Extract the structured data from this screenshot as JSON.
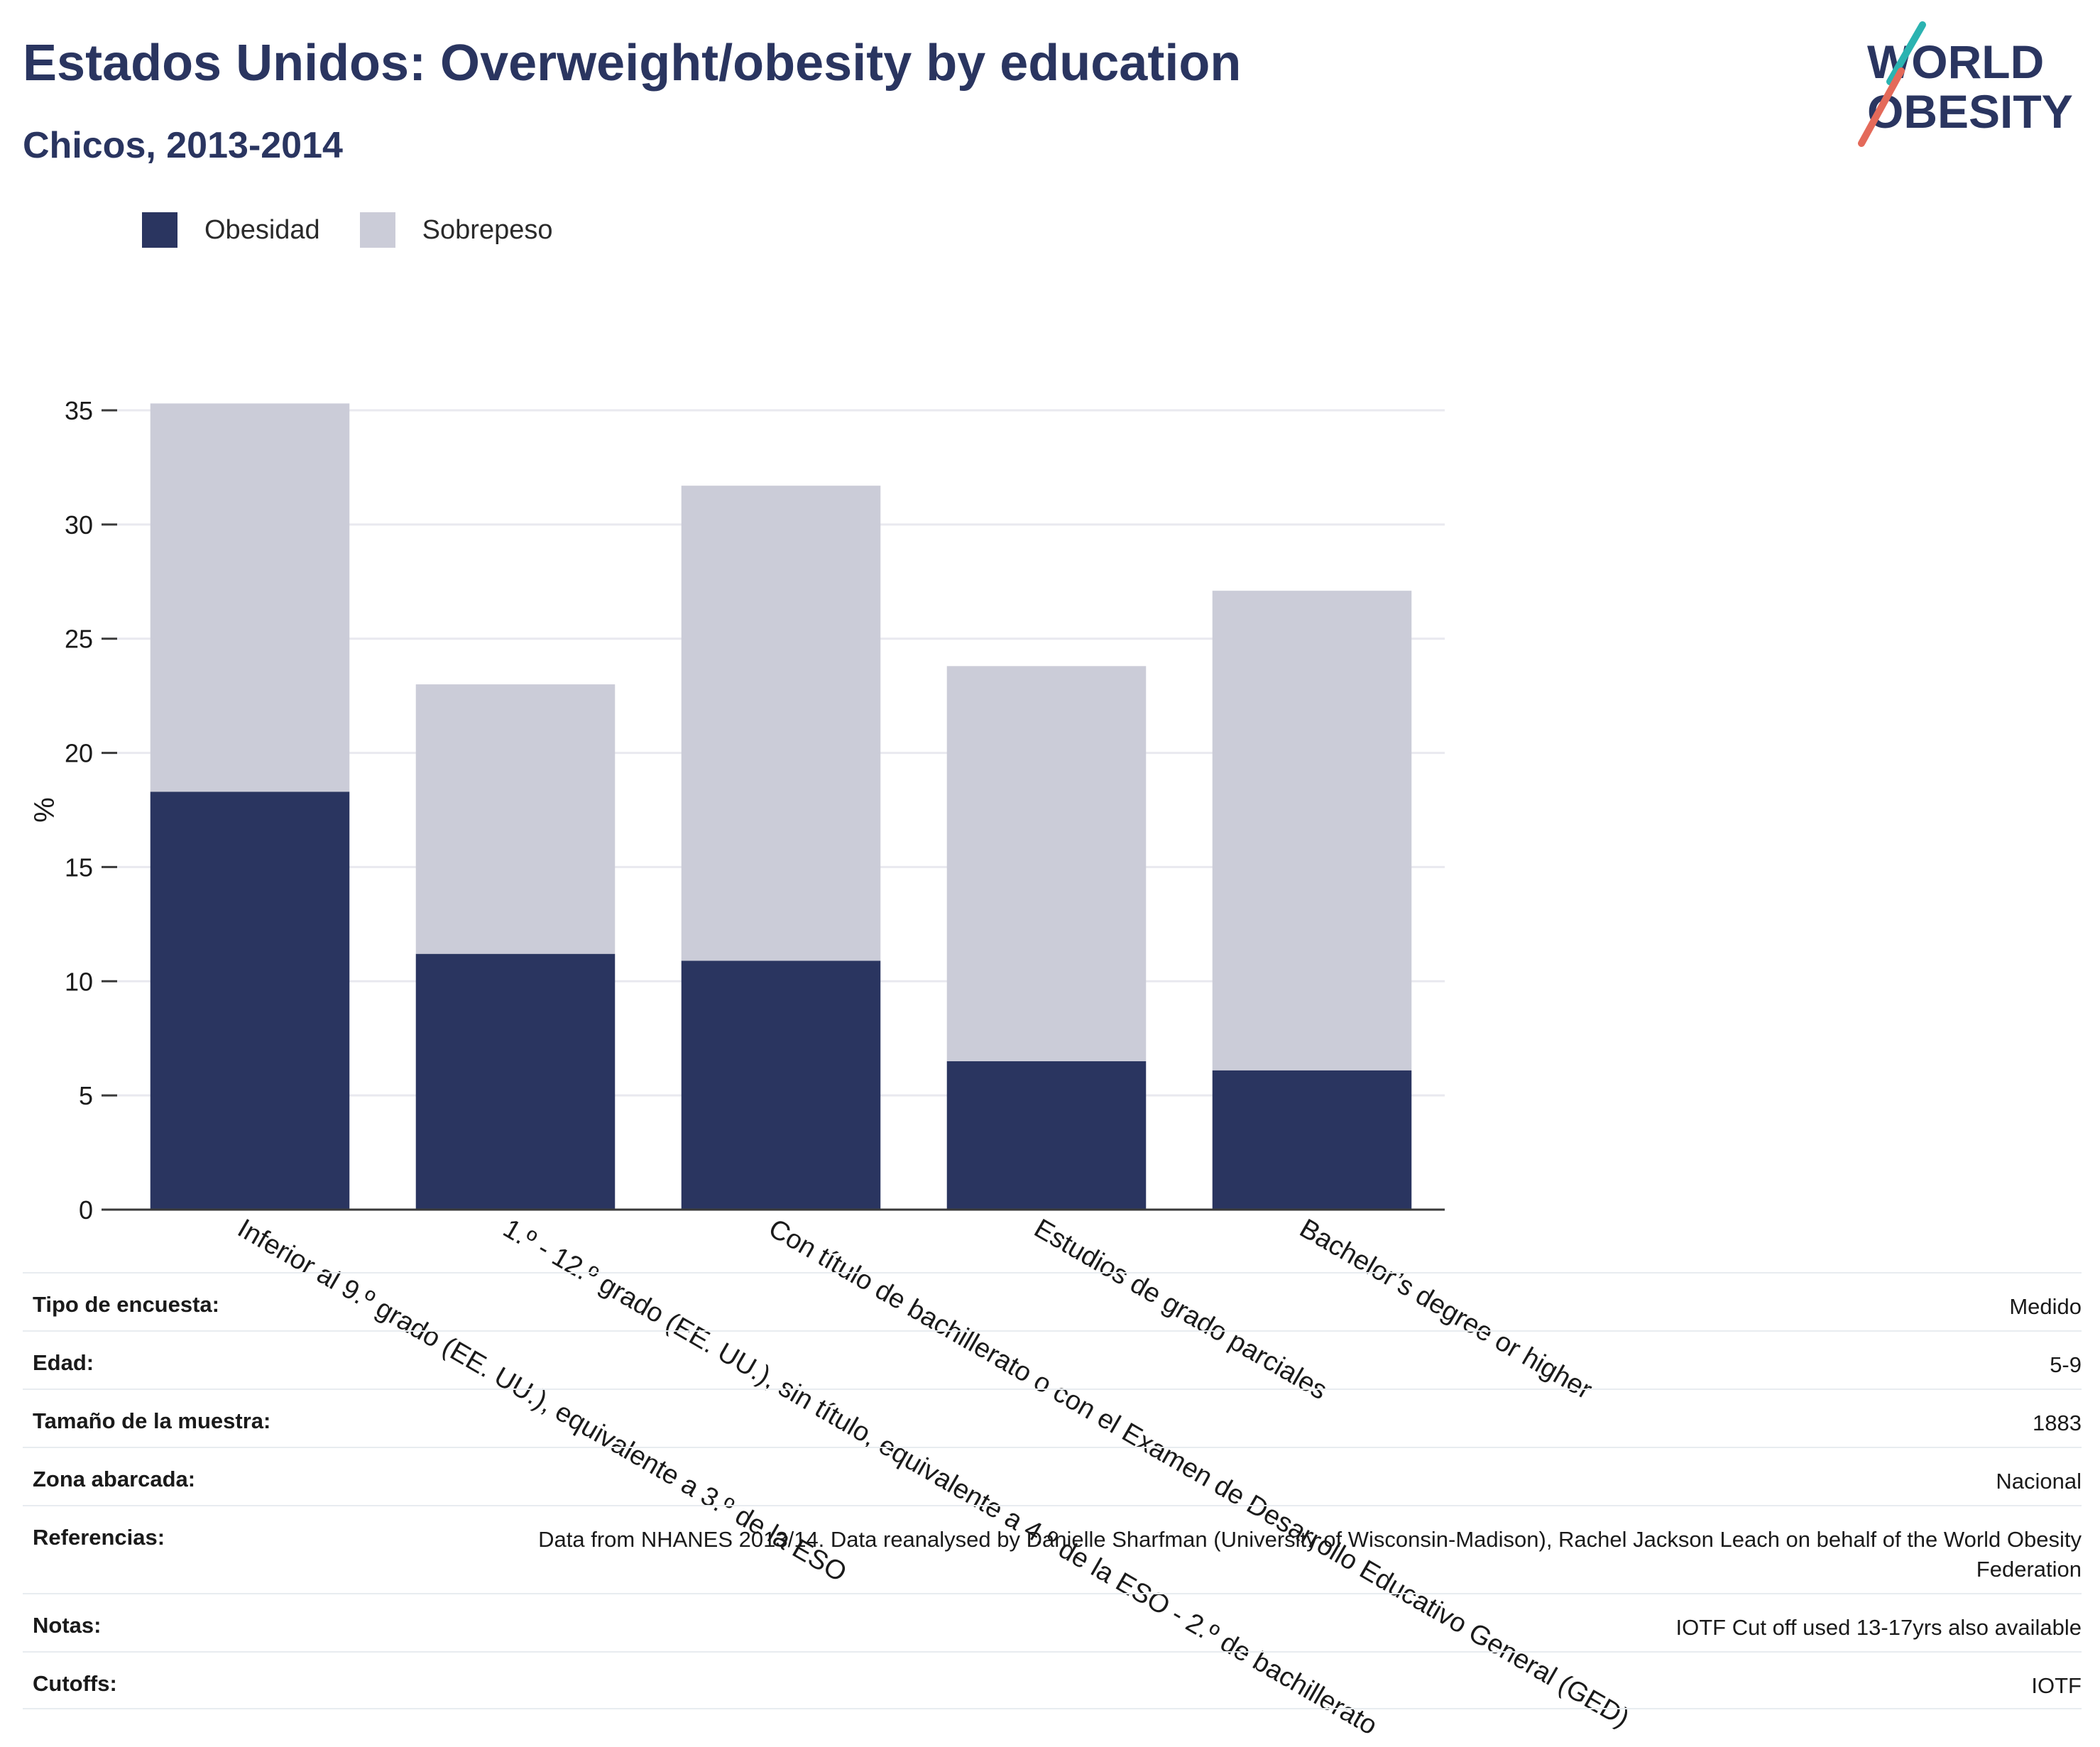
{
  "header": {
    "title": "Estados Unidos: Overweight/obesity by education",
    "subtitle": "Chicos, 2013-2014",
    "logo_line1": "WORLD",
    "logo_line2": "OBESITY"
  },
  "colors": {
    "obesidad": "#2a3560",
    "sobrepeso": "#cbccd8",
    "logo_teal": "#2bb3b1",
    "logo_coral": "#e46a5a",
    "grid": "#e9e9ef",
    "axis": "#3a3a3a"
  },
  "legend": [
    {
      "label": "Obesidad",
      "color": "#2a3560"
    },
    {
      "label": "Sobrepeso",
      "color": "#cbccd8"
    }
  ],
  "chart_data": {
    "type": "bar",
    "stacked": true,
    "ylabel": "%",
    "ylim": [
      0,
      35
    ],
    "yticks": [
      0,
      5,
      10,
      15,
      20,
      25,
      30,
      35
    ],
    "grid": true,
    "categories": [
      "Inferior al 9.º grado (EE. UU.), equivalente a 3.º de la ESO",
      "1.º - 12.º grado (EE. UU.), sin título, equivalente a 4.º de la ESO - 2.º de bachillerato",
      "Con título de bachillerato o con el Examen de Desarrollo Educativo General (GED)",
      "Estudios de grado parciales",
      "Bachelor’s degree or higher"
    ],
    "series": [
      {
        "name": "Obesidad",
        "values": [
          18.3,
          11.2,
          10.9,
          6.5,
          6.1
        ]
      },
      {
        "name": "Sobrepeso",
        "values": [
          17.0,
          11.8,
          20.8,
          17.3,
          21.0
        ]
      }
    ]
  },
  "meta": [
    {
      "label": "Tipo de encuesta:",
      "value": "Medido"
    },
    {
      "label": "Edad:",
      "value": "5-9"
    },
    {
      "label": "Tamaño de la muestra:",
      "value": "1883"
    },
    {
      "label": "Zona abarcada:",
      "value": "Nacional"
    },
    {
      "label": "Referencias:",
      "value": "Data from NHANES 2013/14. Data reanalysed by Danielle Sharfman (University of Wisconsin-Madison), Rachel Jackson Leach on behalf of the World Obesity Federation"
    },
    {
      "label": "Notas:",
      "value": "IOTF Cut off used 13-17yrs also available"
    },
    {
      "label": "Cutoffs:",
      "value": "IOTF"
    }
  ]
}
